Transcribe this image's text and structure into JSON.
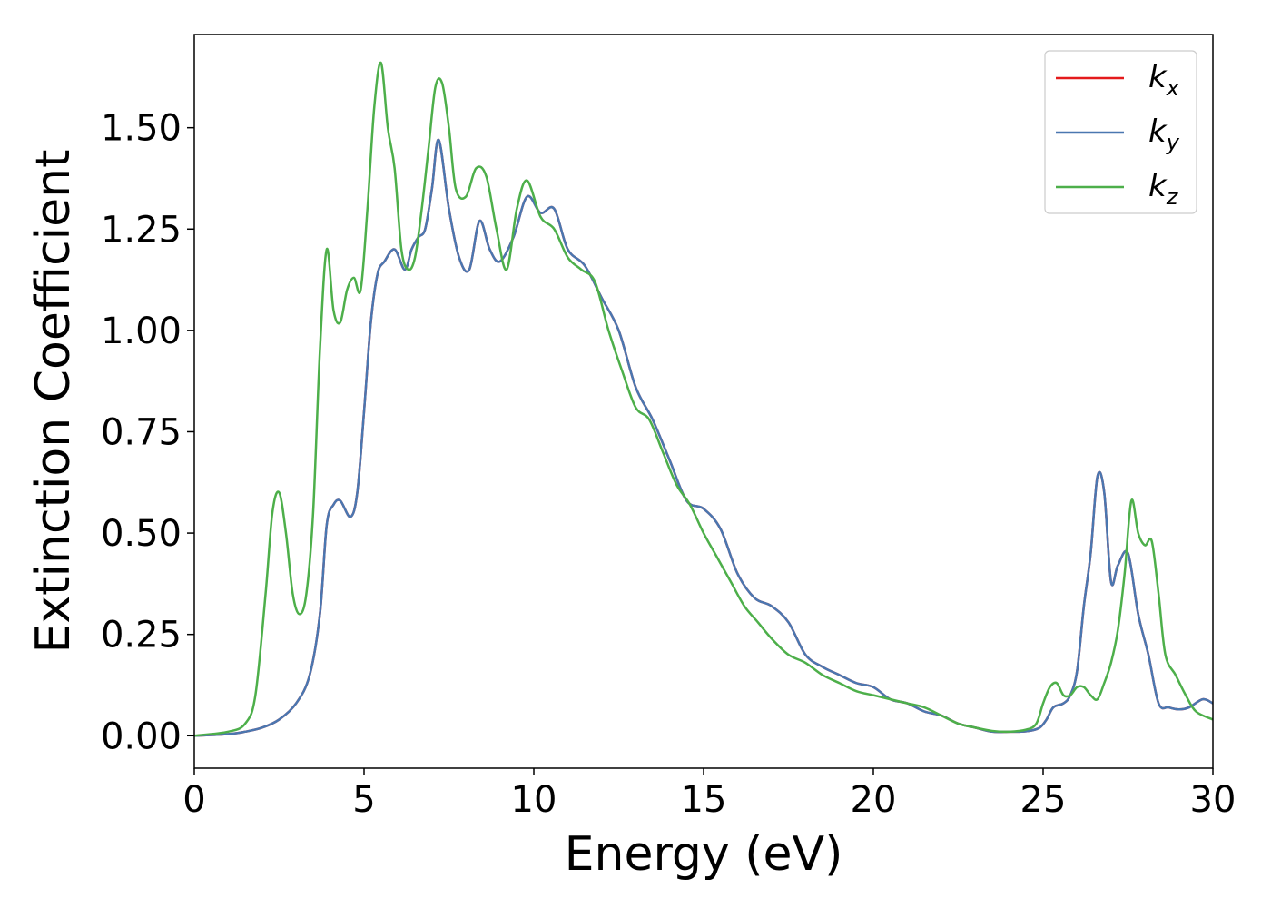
{
  "chart_data": {
    "type": "line",
    "title": "",
    "xlabel": "Energy (eV)",
    "ylabel": "Extinction Coefficient",
    "xlim": [
      0,
      30
    ],
    "ylim": [
      -0.08,
      1.73
    ],
    "xticks": [
      0,
      5,
      10,
      15,
      20,
      25,
      30
    ],
    "yticks": [
      0.0,
      0.25,
      0.5,
      0.75,
      1.0,
      1.25,
      1.5
    ],
    "ytick_format": "0.00",
    "grid": false,
    "legend_position": "top-right",
    "series": [
      {
        "name": "k",
        "subscript": "x",
        "color": "#e41a1c",
        "x": [
          0,
          1,
          1.5,
          2,
          2.5,
          3,
          3.4,
          3.7,
          3.9,
          4.1,
          4.3,
          4.6,
          4.8,
          5,
          5.2,
          5.4,
          5.6,
          5.9,
          6.2,
          6.4,
          6.6,
          6.8,
          7,
          7.2,
          7.5,
          7.8,
          8.1,
          8.4,
          8.7,
          9,
          9.4,
          9.8,
          10.2,
          10.6,
          11,
          11.5,
          12,
          12.5,
          13,
          13.5,
          14,
          14.5,
          15,
          15.5,
          16,
          16.5,
          17,
          17.5,
          18,
          18.5,
          19,
          19.5,
          20,
          20.5,
          21,
          21.5,
          22,
          22.5,
          23,
          23.5,
          24,
          24.3,
          24.6,
          24.9,
          25.1,
          25.3,
          25.6,
          25.8,
          26,
          26.2,
          26.4,
          26.6,
          26.8,
          27,
          27.2,
          27.5,
          27.8,
          28.1,
          28.4,
          28.7,
          29,
          29.3,
          29.7,
          30
        ],
        "y": [
          0,
          0.004,
          0.01,
          0.02,
          0.04,
          0.08,
          0.15,
          0.3,
          0.52,
          0.57,
          0.58,
          0.54,
          0.6,
          0.8,
          1.02,
          1.14,
          1.17,
          1.2,
          1.15,
          1.2,
          1.23,
          1.25,
          1.35,
          1.47,
          1.3,
          1.18,
          1.15,
          1.27,
          1.2,
          1.17,
          1.23,
          1.33,
          1.29,
          1.3,
          1.2,
          1.16,
          1.08,
          1.0,
          0.86,
          0.78,
          0.68,
          0.58,
          0.56,
          0.51,
          0.4,
          0.34,
          0.32,
          0.28,
          0.2,
          0.17,
          0.15,
          0.13,
          0.12,
          0.09,
          0.08,
          0.06,
          0.05,
          0.03,
          0.02,
          0.01,
          0.01,
          0.01,
          0.012,
          0.02,
          0.04,
          0.07,
          0.08,
          0.1,
          0.16,
          0.32,
          0.45,
          0.64,
          0.6,
          0.38,
          0.42,
          0.45,
          0.3,
          0.2,
          0.08,
          0.07,
          0.065,
          0.07,
          0.09,
          0.08
        ]
      },
      {
        "name": "k",
        "subscript": "y",
        "color": "#4a77b0",
        "x": [
          0,
          1,
          1.5,
          2,
          2.5,
          3,
          3.4,
          3.7,
          3.9,
          4.1,
          4.3,
          4.6,
          4.8,
          5,
          5.2,
          5.4,
          5.6,
          5.9,
          6.2,
          6.4,
          6.6,
          6.8,
          7,
          7.2,
          7.5,
          7.8,
          8.1,
          8.4,
          8.7,
          9,
          9.4,
          9.8,
          10.2,
          10.6,
          11,
          11.5,
          12,
          12.5,
          13,
          13.5,
          14,
          14.5,
          15,
          15.5,
          16,
          16.5,
          17,
          17.5,
          18,
          18.5,
          19,
          19.5,
          20,
          20.5,
          21,
          21.5,
          22,
          22.5,
          23,
          23.5,
          24,
          24.3,
          24.6,
          24.9,
          25.1,
          25.3,
          25.6,
          25.8,
          26,
          26.2,
          26.4,
          26.6,
          26.8,
          27,
          27.2,
          27.5,
          27.8,
          28.1,
          28.4,
          28.7,
          29,
          29.3,
          29.7,
          30
        ],
        "y": [
          0,
          0.004,
          0.01,
          0.02,
          0.04,
          0.08,
          0.15,
          0.3,
          0.52,
          0.57,
          0.58,
          0.54,
          0.6,
          0.8,
          1.02,
          1.14,
          1.17,
          1.2,
          1.15,
          1.2,
          1.23,
          1.25,
          1.35,
          1.47,
          1.3,
          1.18,
          1.15,
          1.27,
          1.2,
          1.17,
          1.23,
          1.33,
          1.29,
          1.3,
          1.2,
          1.16,
          1.08,
          1.0,
          0.86,
          0.78,
          0.68,
          0.58,
          0.56,
          0.51,
          0.4,
          0.34,
          0.32,
          0.28,
          0.2,
          0.17,
          0.15,
          0.13,
          0.12,
          0.09,
          0.08,
          0.06,
          0.05,
          0.03,
          0.02,
          0.01,
          0.01,
          0.01,
          0.012,
          0.02,
          0.04,
          0.07,
          0.08,
          0.1,
          0.16,
          0.32,
          0.45,
          0.64,
          0.6,
          0.38,
          0.42,
          0.45,
          0.3,
          0.2,
          0.08,
          0.07,
          0.065,
          0.07,
          0.09,
          0.08
        ]
      },
      {
        "name": "k",
        "subscript": "z",
        "color": "#4daf4a",
        "x": [
          0,
          1,
          1.5,
          1.8,
          2.1,
          2.3,
          2.5,
          2.7,
          2.9,
          3.1,
          3.3,
          3.5,
          3.7,
          3.9,
          4.1,
          4.3,
          4.5,
          4.7,
          4.9,
          5.1,
          5.3,
          5.5,
          5.7,
          5.9,
          6.1,
          6.3,
          6.5,
          6.7,
          6.9,
          7.1,
          7.3,
          7.5,
          7.7,
          8,
          8.3,
          8.6,
          8.9,
          9.2,
          9.5,
          9.8,
          10.2,
          10.6,
          11,
          11.4,
          11.8,
          12.2,
          12.6,
          13,
          13.4,
          13.8,
          14.2,
          14.6,
          15,
          15.4,
          15.8,
          16.2,
          16.6,
          17,
          17.5,
          18,
          18.5,
          19,
          19.5,
          20,
          20.5,
          21,
          21.5,
          22,
          22.5,
          23,
          23.5,
          24,
          24.5,
          24.8,
          25,
          25.2,
          25.4,
          25.6,
          25.8,
          26,
          26.2,
          26.4,
          26.6,
          26.8,
          27,
          27.2,
          27.4,
          27.6,
          27.8,
          28,
          28.2,
          28.4,
          28.6,
          28.9,
          29.2,
          29.5,
          30
        ],
        "y": [
          0,
          0.01,
          0.03,
          0.1,
          0.35,
          0.55,
          0.6,
          0.5,
          0.35,
          0.3,
          0.35,
          0.55,
          0.95,
          1.2,
          1.05,
          1.02,
          1.1,
          1.13,
          1.1,
          1.3,
          1.55,
          1.66,
          1.5,
          1.4,
          1.2,
          1.15,
          1.18,
          1.3,
          1.45,
          1.6,
          1.61,
          1.5,
          1.35,
          1.33,
          1.4,
          1.38,
          1.25,
          1.15,
          1.3,
          1.37,
          1.28,
          1.25,
          1.18,
          1.15,
          1.12,
          1.0,
          0.9,
          0.81,
          0.78,
          0.7,
          0.62,
          0.57,
          0.5,
          0.44,
          0.38,
          0.32,
          0.28,
          0.24,
          0.2,
          0.18,
          0.15,
          0.13,
          0.11,
          0.1,
          0.09,
          0.08,
          0.07,
          0.05,
          0.03,
          0.02,
          0.012,
          0.01,
          0.015,
          0.03,
          0.08,
          0.12,
          0.13,
          0.1,
          0.1,
          0.12,
          0.12,
          0.1,
          0.09,
          0.13,
          0.18,
          0.26,
          0.4,
          0.58,
          0.5,
          0.47,
          0.48,
          0.35,
          0.2,
          0.15,
          0.1,
          0.06,
          0.04
        ]
      }
    ]
  }
}
